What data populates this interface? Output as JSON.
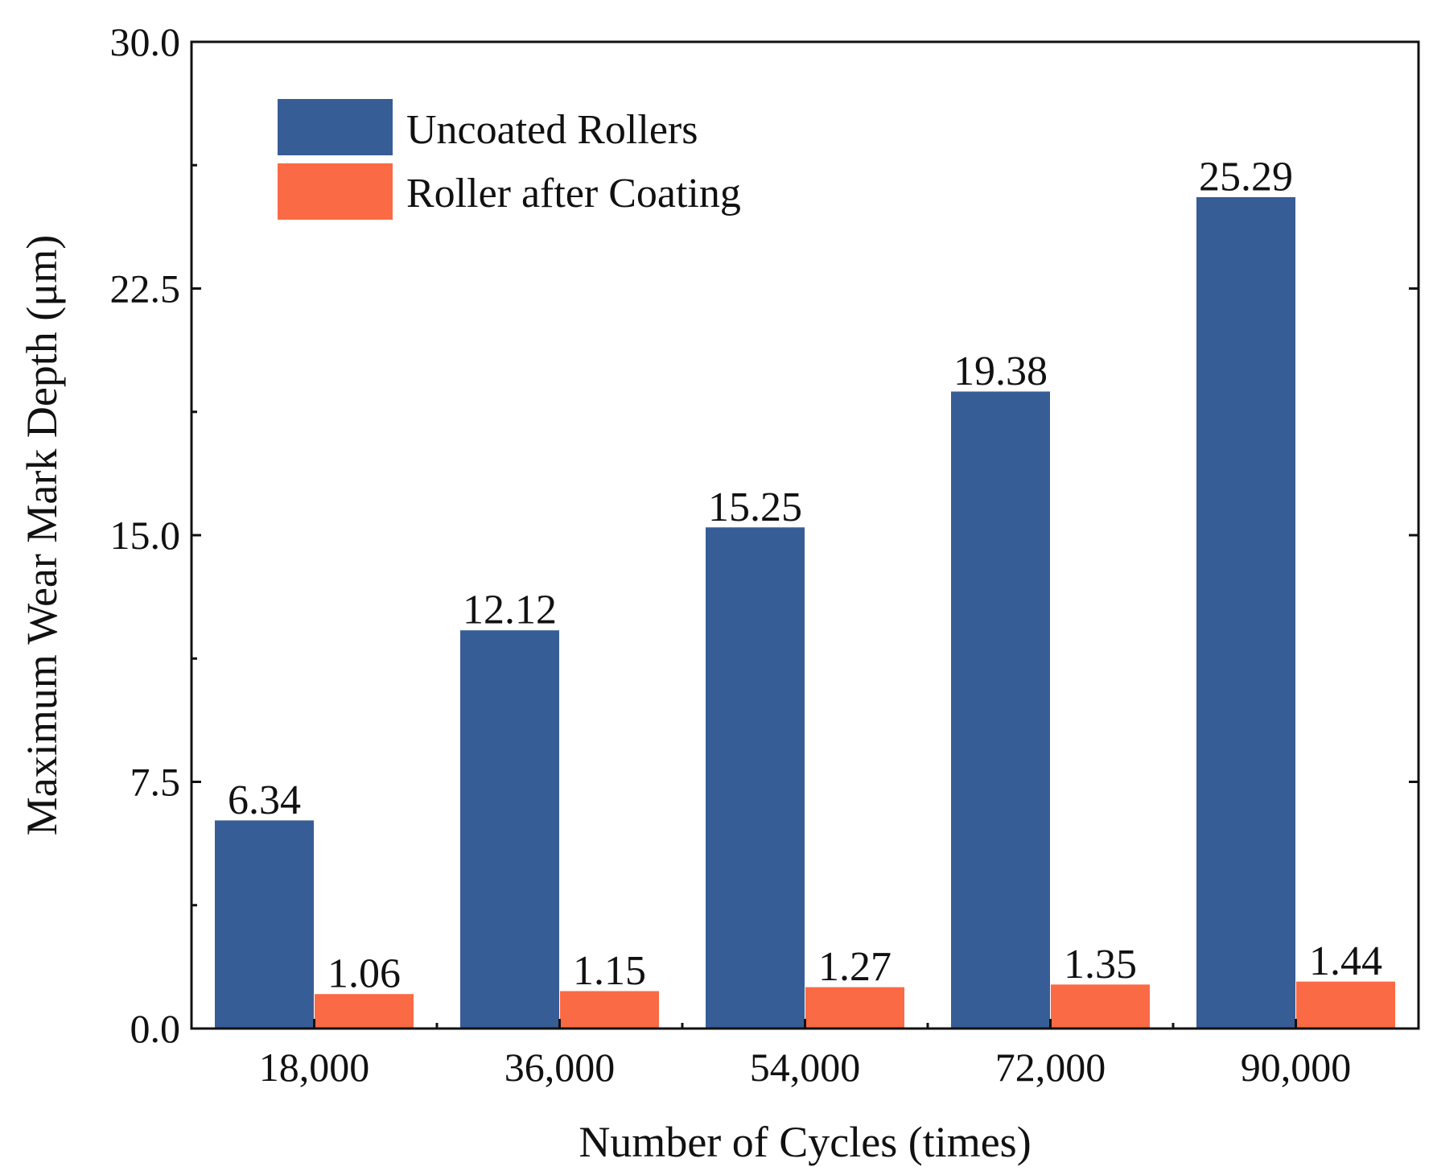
{
  "chart_data": {
    "type": "bar",
    "title": "",
    "xlabel": "Number of Cycles (times)",
    "ylabel": "Maximum Wear Mark Depth (μm)",
    "categories": [
      "18,000",
      "36,000",
      "54,000",
      "72,000",
      "90,000"
    ],
    "ylim": [
      0,
      30
    ],
    "yticks": [
      "0.0",
      "7.5",
      "15.0",
      "22.5",
      "30.0"
    ],
    "ytick_values": [
      0,
      7.5,
      15,
      22.5,
      30
    ],
    "legend_position": "top-left",
    "series": [
      {
        "name": "Uncoated Rollers",
        "color": "#375d96",
        "values": [
          6.34,
          12.12,
          15.25,
          19.38,
          25.29
        ],
        "labels": [
          "6.34",
          "12.12",
          "15.25",
          "19.38",
          "25.29"
        ]
      },
      {
        "name": "Roller after Coating",
        "color": "#fa6a45",
        "values": [
          1.06,
          1.15,
          1.27,
          1.35,
          1.44
        ],
        "labels": [
          "1.06",
          "1.15",
          "1.27",
          "1.35",
          "1.44"
        ]
      }
    ]
  }
}
